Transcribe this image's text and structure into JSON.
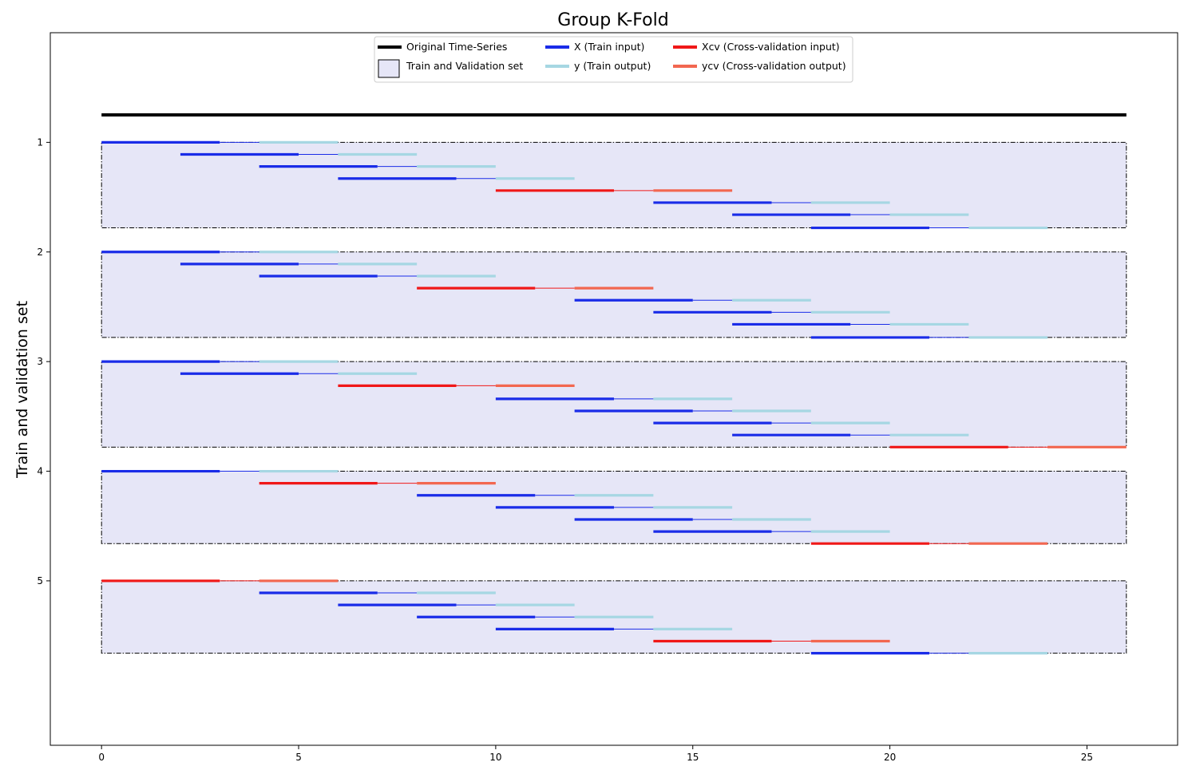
{
  "chart_data": {
    "type": "line",
    "title": "Group K-Fold",
    "xlabel": "",
    "ylabel": "Train and validation set",
    "xlim": [
      -1.3,
      27.3
    ],
    "ylim": [
      6.5,
      0.0
    ],
    "xticks": [
      0,
      5,
      10,
      15,
      20,
      25
    ],
    "yticks": [
      1,
      2,
      3,
      4,
      5
    ],
    "grid": false,
    "legend_position": "top-center",
    "colors": {
      "original": "#000000",
      "train_input": "#1a2ce8",
      "train_output": "#a6d7e3",
      "cv_input": "#f01818",
      "cv_output": "#f26750",
      "box_fill": "#e6e6f7",
      "box_edge": "#000000"
    },
    "legend": [
      {
        "key": "original",
        "label": "Original Time-Series"
      },
      {
        "key": "box",
        "label": "Train and Validation set"
      },
      {
        "key": "train_input",
        "label": "X (Train input)"
      },
      {
        "key": "train_output",
        "label": "y (Train output)"
      },
      {
        "key": "cv_input",
        "label": "Xcv (Cross-validation input)"
      },
      {
        "key": "cv_output",
        "label": "ycv (Cross-validation output)"
      }
    ],
    "original_series": {
      "x": [
        0,
        26
      ],
      "y": 0.75
    },
    "window": {
      "input_length": 3,
      "gap": 1,
      "output_length": 2
    },
    "folds": [
      {
        "fold": 1,
        "box": {
          "x": [
            0,
            26
          ],
          "y": [
            1.0,
            1.78
          ]
        },
        "segments": [
          {
            "y": 1.0,
            "start": 0,
            "cv": false
          },
          {
            "y": 1.11,
            "start": 2,
            "cv": false
          },
          {
            "y": 1.22,
            "start": 4,
            "cv": false
          },
          {
            "y": 1.33,
            "start": 6,
            "cv": false
          },
          {
            "y": 1.44,
            "start": 10,
            "cv": true
          },
          {
            "y": 1.55,
            "start": 14,
            "cv": false
          },
          {
            "y": 1.66,
            "start": 16,
            "cv": false
          },
          {
            "y": 1.78,
            "start": 18,
            "cv": false
          }
        ]
      },
      {
        "fold": 2,
        "box": {
          "x": [
            0,
            26
          ],
          "y": [
            2.0,
            2.78
          ]
        },
        "segments": [
          {
            "y": 2.0,
            "start": 0,
            "cv": false
          },
          {
            "y": 2.11,
            "start": 2,
            "cv": false
          },
          {
            "y": 2.22,
            "start": 4,
            "cv": false
          },
          {
            "y": 2.33,
            "start": 8,
            "cv": true
          },
          {
            "y": 2.44,
            "start": 12,
            "cv": false
          },
          {
            "y": 2.55,
            "start": 14,
            "cv": false
          },
          {
            "y": 2.66,
            "start": 16,
            "cv": false
          },
          {
            "y": 2.78,
            "start": 18,
            "cv": false
          }
        ]
      },
      {
        "fold": 3,
        "box": {
          "x": [
            0,
            26
          ],
          "y": [
            3.0,
            3.78
          ]
        },
        "segments": [
          {
            "y": 3.0,
            "start": 0,
            "cv": false
          },
          {
            "y": 3.11,
            "start": 2,
            "cv": false
          },
          {
            "y": 3.22,
            "start": 6,
            "cv": true
          },
          {
            "y": 3.34,
            "start": 10,
            "cv": false
          },
          {
            "y": 3.45,
            "start": 12,
            "cv": false
          },
          {
            "y": 3.56,
            "start": 14,
            "cv": false
          },
          {
            "y": 3.67,
            "start": 16,
            "cv": false
          },
          {
            "y": 3.78,
            "start": 20,
            "cv": true
          }
        ]
      },
      {
        "fold": 4,
        "box": {
          "x": [
            0,
            26
          ],
          "y": [
            4.0,
            4.66
          ]
        },
        "segments": [
          {
            "y": 4.0,
            "start": 0,
            "cv": false
          },
          {
            "y": 4.11,
            "start": 4,
            "cv": true
          },
          {
            "y": 4.22,
            "start": 8,
            "cv": false
          },
          {
            "y": 4.33,
            "start": 10,
            "cv": false
          },
          {
            "y": 4.44,
            "start": 12,
            "cv": false
          },
          {
            "y": 4.55,
            "start": 14,
            "cv": false
          },
          {
            "y": 4.66,
            "start": 18,
            "cv": true
          }
        ]
      },
      {
        "fold": 5,
        "box": {
          "x": [
            0,
            26
          ],
          "y": [
            5.0,
            5.66
          ]
        },
        "segments": [
          {
            "y": 5.0,
            "start": 0,
            "cv": true
          },
          {
            "y": 5.11,
            "start": 4,
            "cv": false
          },
          {
            "y": 5.22,
            "start": 6,
            "cv": false
          },
          {
            "y": 5.33,
            "start": 8,
            "cv": false
          },
          {
            "y": 5.44,
            "start": 10,
            "cv": false
          },
          {
            "y": 5.55,
            "start": 14,
            "cv": true
          },
          {
            "y": 5.66,
            "start": 18,
            "cv": false
          }
        ]
      }
    ]
  }
}
